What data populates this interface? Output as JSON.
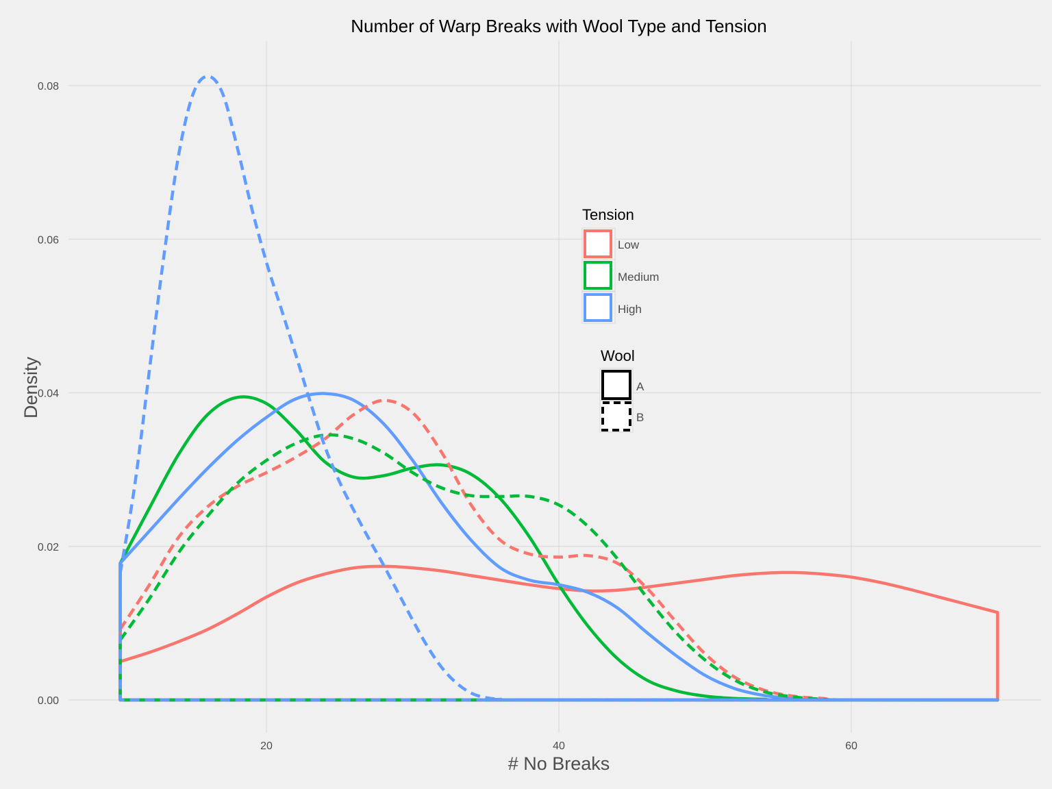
{
  "chart_data": {
    "type": "line",
    "title": "Number of Warp Breaks with Wool Type and Tension",
    "xlabel": "# No Breaks",
    "ylabel": "Density",
    "xlim": [
      10,
      70
    ],
    "ylim": [
      0,
      0.082
    ],
    "x_ticks": [
      20,
      40,
      60
    ],
    "x_tick_labels": [
      "20",
      "40",
      "60"
    ],
    "y_ticks": [
      0,
      0.02,
      0.04,
      0.06,
      0.08
    ],
    "y_tick_labels": [
      "0.00",
      "0.02",
      "0.04",
      "0.06",
      "0.08"
    ],
    "grid": true,
    "legend_placement": "center-right",
    "legends": [
      {
        "title": "Tension",
        "items": [
          {
            "label": "Low",
            "color": "#f8766d"
          },
          {
            "label": "Medium",
            "color": "#00ba38"
          },
          {
            "label": "High",
            "color": "#619cff"
          }
        ]
      },
      {
        "title": "Wool",
        "items": [
          {
            "label": "A",
            "linetype": "solid"
          },
          {
            "label": "B",
            "linetype": "dashed"
          }
        ]
      }
    ],
    "series": [
      {
        "tension": "Low",
        "wool": "A",
        "color": "#f8766d",
        "linetype": "solid",
        "points": [
          [
            10,
            0.005
          ],
          [
            12,
            0.0062
          ],
          [
            14,
            0.0076
          ],
          [
            16,
            0.0092
          ],
          [
            18,
            0.0112
          ],
          [
            20,
            0.0134
          ],
          [
            22,
            0.0152
          ],
          [
            24,
            0.0164
          ],
          [
            26,
            0.0172
          ],
          [
            28,
            0.0174
          ],
          [
            30,
            0.0172
          ],
          [
            32,
            0.0168
          ],
          [
            34,
            0.0162
          ],
          [
            36,
            0.0156
          ],
          [
            38,
            0.015
          ],
          [
            40,
            0.0145
          ],
          [
            42,
            0.0142
          ],
          [
            44,
            0.0143
          ],
          [
            46,
            0.0147
          ],
          [
            48,
            0.0152
          ],
          [
            50,
            0.0157
          ],
          [
            52,
            0.0162
          ],
          [
            54,
            0.0165
          ],
          [
            56,
            0.0166
          ],
          [
            58,
            0.0164
          ],
          [
            60,
            0.016
          ],
          [
            62,
            0.0153
          ],
          [
            64,
            0.0144
          ],
          [
            66,
            0.0134
          ],
          [
            68,
            0.0124
          ],
          [
            70,
            0.0114
          ]
        ]
      },
      {
        "tension": "Medium",
        "wool": "A",
        "color": "#00ba38",
        "linetype": "solid",
        "points": [
          [
            10,
            0.0178
          ],
          [
            12,
            0.025
          ],
          [
            14,
            0.032
          ],
          [
            16,
            0.0372
          ],
          [
            18,
            0.0394
          ],
          [
            20,
            0.0386
          ],
          [
            22,
            0.0352
          ],
          [
            24,
            0.031
          ],
          [
            26,
            0.029
          ],
          [
            28,
            0.0292
          ],
          [
            30,
            0.0302
          ],
          [
            32,
            0.0306
          ],
          [
            34,
            0.0294
          ],
          [
            36,
            0.0262
          ],
          [
            38,
            0.0212
          ],
          [
            40,
            0.015
          ],
          [
            42,
            0.0096
          ],
          [
            44,
            0.0054
          ],
          [
            46,
            0.0026
          ],
          [
            48,
            0.0012
          ],
          [
            50,
            0.0005
          ],
          [
            52,
            0.0002
          ],
          [
            54,
            0.0001
          ],
          [
            56,
            0
          ]
        ]
      },
      {
        "tension": "High",
        "wool": "A",
        "color": "#619cff",
        "linetype": "solid",
        "points": [
          [
            10,
            0.0178
          ],
          [
            12,
            0.022
          ],
          [
            14,
            0.0262
          ],
          [
            16,
            0.0302
          ],
          [
            18,
            0.0338
          ],
          [
            20,
            0.0368
          ],
          [
            22,
            0.0392
          ],
          [
            24,
            0.0399
          ],
          [
            26,
            0.039
          ],
          [
            28,
            0.036
          ],
          [
            30,
            0.0312
          ],
          [
            32,
            0.0256
          ],
          [
            34,
            0.0208
          ],
          [
            36,
            0.0172
          ],
          [
            38,
            0.0156
          ],
          [
            40,
            0.015
          ],
          [
            42,
            0.014
          ],
          [
            44,
            0.012
          ],
          [
            46,
            0.0088
          ],
          [
            48,
            0.0058
          ],
          [
            50,
            0.0032
          ],
          [
            52,
            0.0015
          ],
          [
            54,
            0.0006
          ],
          [
            56,
            0.0002
          ],
          [
            58,
            0
          ]
        ]
      },
      {
        "tension": "Low",
        "wool": "B",
        "color": "#f8766d",
        "linetype": "dashed",
        "points": [
          [
            10,
            0.0092
          ],
          [
            12,
            0.015
          ],
          [
            14,
            0.0212
          ],
          [
            16,
            0.0252
          ],
          [
            18,
            0.0278
          ],
          [
            20,
            0.0296
          ],
          [
            22,
            0.0316
          ],
          [
            24,
            0.034
          ],
          [
            26,
            0.0372
          ],
          [
            28,
            0.039
          ],
          [
            30,
            0.0374
          ],
          [
            32,
            0.0322
          ],
          [
            34,
            0.0254
          ],
          [
            36,
            0.0208
          ],
          [
            38,
            0.019
          ],
          [
            40,
            0.0186
          ],
          [
            42,
            0.0188
          ],
          [
            44,
            0.0178
          ],
          [
            46,
            0.0146
          ],
          [
            48,
            0.0102
          ],
          [
            50,
            0.006
          ],
          [
            52,
            0.003
          ],
          [
            54,
            0.0013
          ],
          [
            56,
            0.0005
          ],
          [
            58,
            0.0002
          ],
          [
            60,
            0
          ]
        ]
      },
      {
        "tension": "Medium",
        "wool": "B",
        "color": "#00ba38",
        "linetype": "dashed",
        "points": [
          [
            10,
            0.0078
          ],
          [
            12,
            0.0132
          ],
          [
            14,
            0.0192
          ],
          [
            16,
            0.024
          ],
          [
            18,
            0.0282
          ],
          [
            20,
            0.0312
          ],
          [
            22,
            0.0334
          ],
          [
            24,
            0.0345
          ],
          [
            26,
            0.034
          ],
          [
            28,
            0.0322
          ],
          [
            30,
            0.0296
          ],
          [
            32,
            0.0276
          ],
          [
            34,
            0.0266
          ],
          [
            36,
            0.0265
          ],
          [
            38,
            0.0265
          ],
          [
            40,
            0.0254
          ],
          [
            42,
            0.0226
          ],
          [
            44,
            0.0184
          ],
          [
            46,
            0.0134
          ],
          [
            48,
            0.0088
          ],
          [
            50,
            0.0052
          ],
          [
            52,
            0.0026
          ],
          [
            54,
            0.0011
          ],
          [
            56,
            0.0004
          ],
          [
            58,
            0.0001
          ],
          [
            60,
            0
          ]
        ]
      },
      {
        "tension": "High",
        "wool": "B",
        "color": "#619cff",
        "linetype": "dashed",
        "points": [
          [
            10,
            0.0165
          ],
          [
            11,
            0.028
          ],
          [
            12,
            0.043
          ],
          [
            13,
            0.058
          ],
          [
            14,
            0.071
          ],
          [
            15,
            0.079
          ],
          [
            16,
            0.0812
          ],
          [
            17,
            0.079
          ],
          [
            18,
            0.072
          ],
          [
            19,
            0.064
          ],
          [
            20,
            0.057
          ],
          [
            21,
            0.051
          ],
          [
            22,
            0.045
          ],
          [
            23,
            0.0388
          ],
          [
            24,
            0.033
          ],
          [
            25,
            0.0284
          ],
          [
            26,
            0.0246
          ],
          [
            27,
            0.021
          ],
          [
            28,
            0.0176
          ],
          [
            29,
            0.014
          ],
          [
            30,
            0.0104
          ],
          [
            31,
            0.007
          ],
          [
            32,
            0.0042
          ],
          [
            33,
            0.0022
          ],
          [
            34,
            0.0009
          ],
          [
            35,
            0.0003
          ],
          [
            36,
            0.0001
          ],
          [
            38,
            0
          ]
        ]
      }
    ]
  }
}
